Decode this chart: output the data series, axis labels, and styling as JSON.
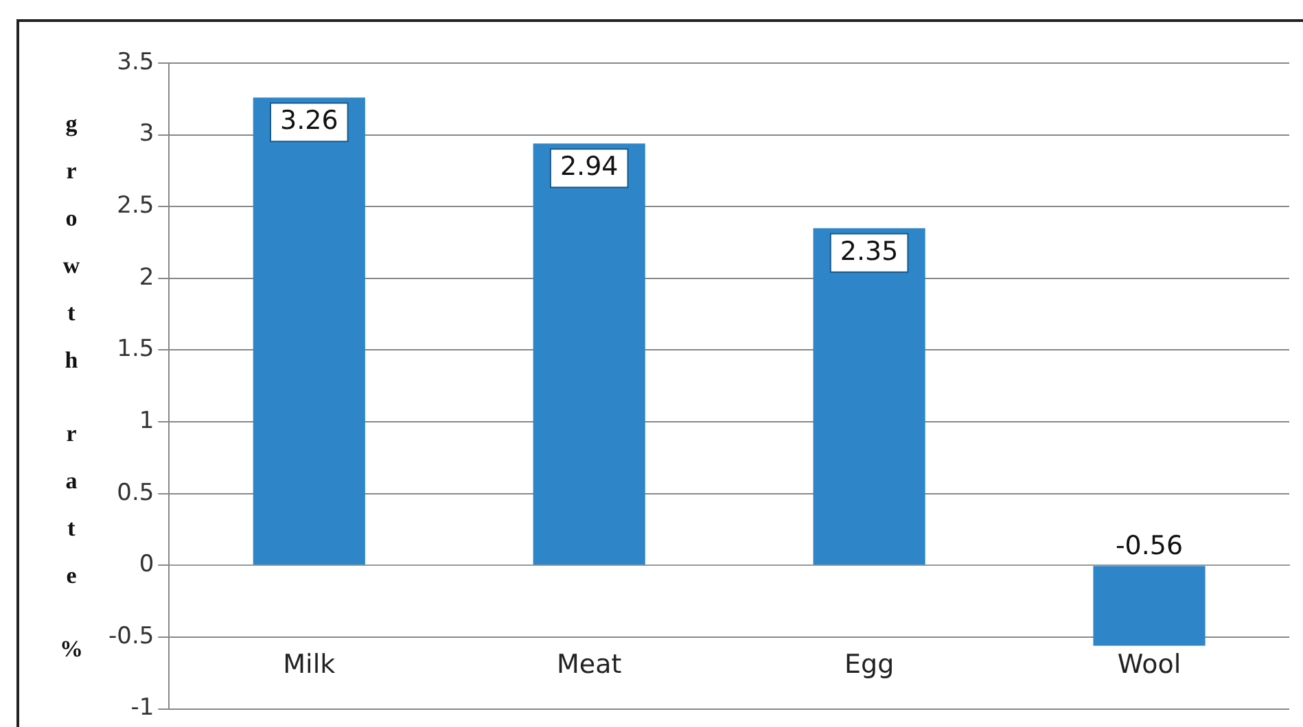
{
  "chart_data": {
    "type": "bar",
    "ylabel": "growth rate %",
    "categories": [
      "Milk",
      "Meat",
      "Egg",
      "Wool"
    ],
    "values": [
      3.26,
      2.94,
      2.35,
      -0.56
    ],
    "color": "#2e86c8",
    "ylim": [
      -1,
      3.5
    ],
    "yticks": [
      -1,
      -0.5,
      0,
      0.5,
      1,
      1.5,
      2,
      2.5,
      3,
      3.5
    ],
    "grid": "y",
    "data_labels": true,
    "legend": false
  }
}
